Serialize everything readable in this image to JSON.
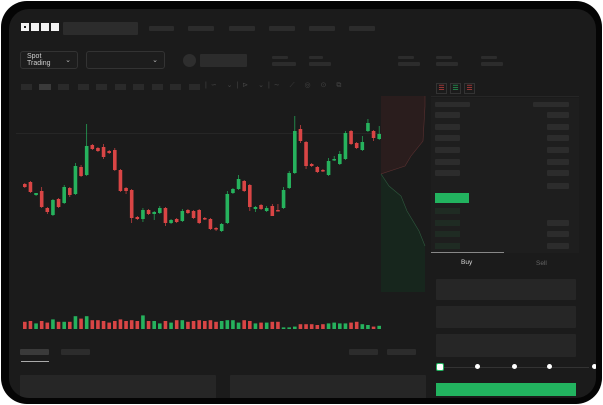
{
  "header": {
    "logo": "OKX"
  },
  "toolbar": {
    "market_selector": "Spot Trading"
  },
  "orderbook": {
    "view_icons": [
      "orderbook-both-icon",
      "orderbook-bids-icon",
      "orderbook-asks-icon"
    ]
  },
  "trade_panel": {
    "tabs": [
      "Buy",
      "Sell"
    ],
    "active_tab": "Buy",
    "slider_percent": 0,
    "slider_stops": [
      0,
      25,
      50,
      75,
      100
    ]
  },
  "colors": {
    "up": "#26b25d",
    "down": "#d94545",
    "accent": "#22b35f",
    "background": "#1b1b1b"
  },
  "chart_data": {
    "type": "candlestick",
    "ohlc": [
      [
        67,
        68,
        63,
        64
      ],
      [
        69,
        70,
        58,
        59
      ],
      [
        56,
        58,
        55,
        58
      ],
      [
        60,
        64,
        43,
        44
      ],
      [
        43,
        44,
        37,
        39
      ],
      [
        36,
        52,
        35,
        51
      ],
      [
        52,
        53,
        43,
        44
      ],
      [
        48,
        66,
        47,
        64
      ],
      [
        63,
        64,
        54,
        56
      ],
      [
        57,
        88,
        56,
        85
      ],
      [
        84,
        86,
        74,
        75
      ],
      [
        76,
        127,
        75,
        105
      ],
      [
        106,
        107,
        101,
        102
      ],
      [
        103,
        104,
        99,
        100
      ],
      [
        104,
        107,
        92,
        94
      ],
      [
        100,
        101,
        97,
        98
      ],
      [
        101,
        103,
        80,
        81
      ],
      [
        81,
        82,
        59,
        60
      ],
      [
        63,
        64,
        57,
        60
      ],
      [
        61,
        62,
        28,
        33
      ],
      [
        34,
        35,
        31,
        32
      ],
      [
        32,
        43,
        29,
        41
      ],
      [
        41,
        42,
        36,
        37
      ],
      [
        37,
        40,
        31,
        39
      ],
      [
        38,
        45,
        37,
        43
      ],
      [
        43,
        44,
        25,
        28
      ],
      [
        28,
        32,
        27,
        31
      ],
      [
        32,
        33,
        28,
        29
      ],
      [
        30,
        42,
        29,
        40
      ],
      [
        41,
        42,
        37,
        38
      ],
      [
        40,
        41,
        32,
        33
      ],
      [
        41,
        42,
        27,
        28
      ],
      [
        33,
        34,
        31,
        32
      ],
      [
        32,
        33,
        21,
        22
      ],
      [
        23,
        24,
        20,
        22
      ],
      [
        20,
        28,
        19,
        27
      ],
      [
        28,
        60,
        27,
        57
      ],
      [
        58,
        63,
        57,
        62
      ],
      [
        62,
        76,
        61,
        72
      ],
      [
        70,
        71,
        59,
        60
      ],
      [
        66,
        67,
        40,
        44
      ],
      [
        42,
        45,
        39,
        44
      ],
      [
        46,
        47,
        41,
        42
      ],
      [
        40,
        45,
        39,
        43
      ],
      [
        45,
        47,
        35,
        35
      ],
      [
        41,
        47,
        40,
        40
      ],
      [
        43,
        64,
        42,
        61
      ],
      [
        63,
        80,
        62,
        78
      ],
      [
        78,
        135,
        77,
        120
      ],
      [
        122,
        126,
        108,
        110
      ],
      [
        109,
        110,
        82,
        85
      ],
      [
        87,
        88,
        84,
        85
      ],
      [
        84,
        85,
        78,
        79
      ],
      [
        81,
        82,
        79,
        80
      ],
      [
        76,
        93,
        75,
        90
      ],
      [
        91,
        95,
        90,
        92
      ],
      [
        87,
        100,
        86,
        97
      ],
      [
        92,
        120,
        91,
        118
      ],
      [
        120,
        121,
        106,
        107
      ],
      [
        108,
        109,
        102,
        103
      ],
      [
        101,
        115,
        100,
        109
      ],
      [
        120,
        132,
        119,
        128
      ],
      [
        120,
        121,
        110,
        113
      ],
      [
        112,
        125,
        111,
        117
      ]
    ],
    "volume": [
      9,
      10,
      7,
      10,
      8,
      12,
      9,
      9,
      9,
      16,
      13,
      16,
      11,
      11,
      10,
      8,
      10,
      12,
      10,
      11,
      10,
      17,
      10,
      10,
      7,
      10,
      8,
      11,
      11,
      9,
      10,
      11,
      10,
      11,
      9,
      10,
      11,
      11,
      8,
      11,
      10,
      7,
      8,
      8,
      9,
      9,
      2,
      2,
      3,
      6,
      6,
      6,
      5,
      6,
      7,
      8,
      7,
      7,
      8,
      9,
      6,
      5,
      3,
      4
    ],
    "depth": {
      "asks_side": "top-left",
      "bids_side": "bottom-left"
    }
  }
}
